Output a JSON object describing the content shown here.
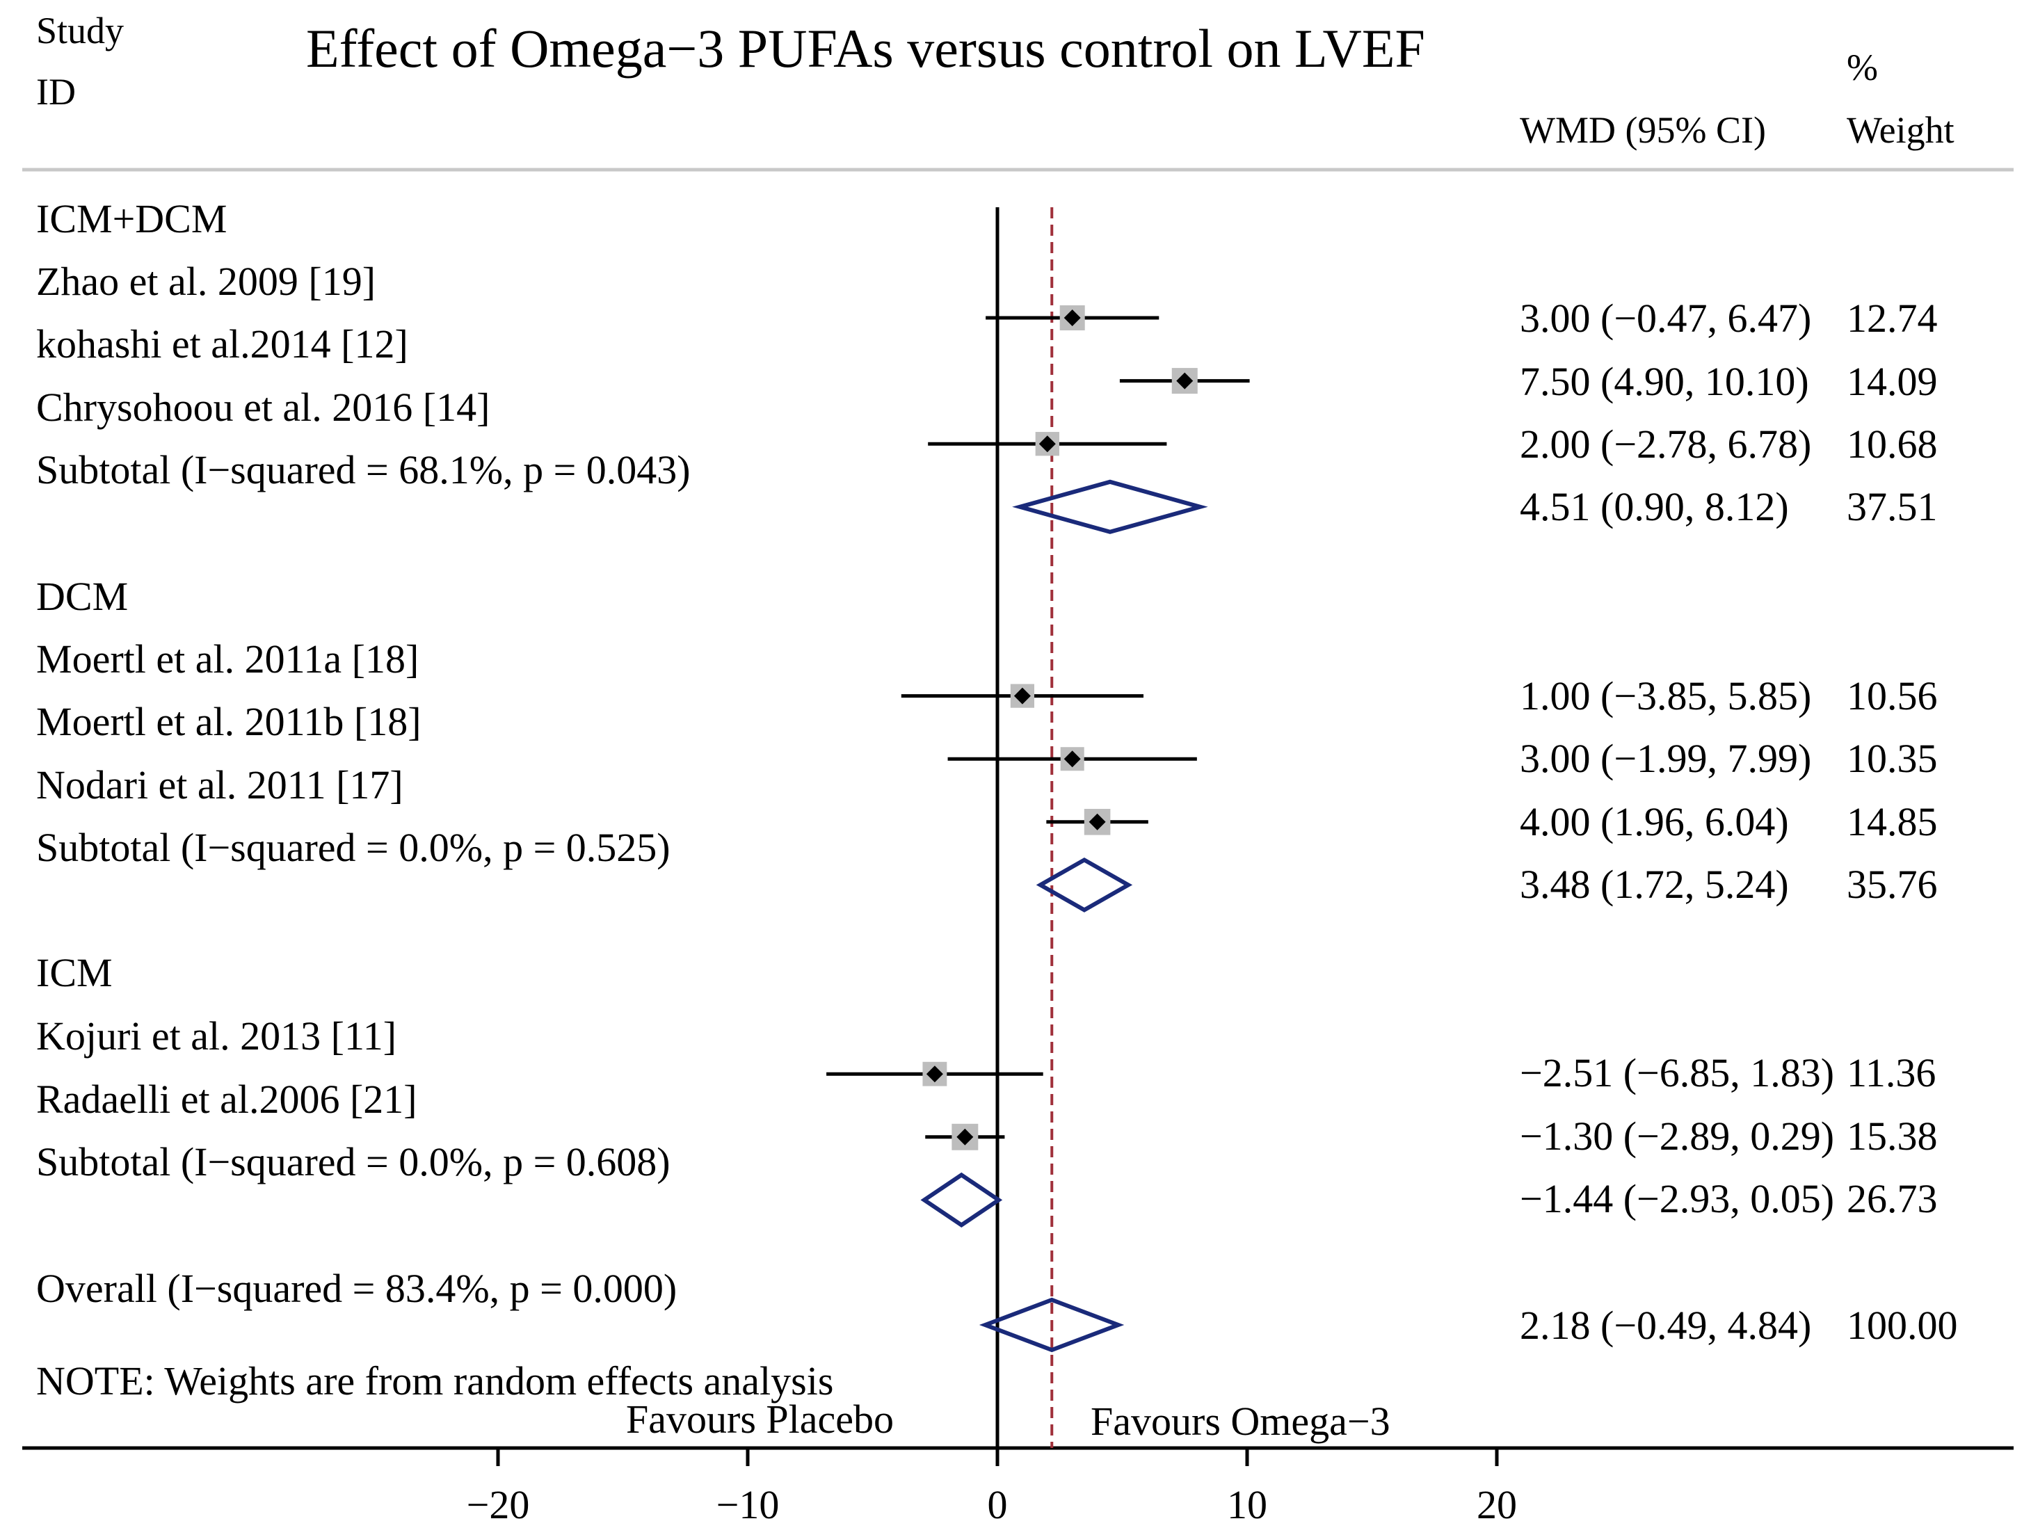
{
  "chart_data": {
    "type": "forest",
    "title": "Effect of Omega−3 PUFAs versus control on LVEF",
    "headers": {
      "study_line1": "Study",
      "study_line2": "ID",
      "effect": "WMD (95% CI)",
      "weight_line1": "%",
      "weight_line2": "Weight"
    },
    "xlim": [
      -40,
      40
    ],
    "ticks": [
      -20,
      -10,
      0,
      10,
      20
    ],
    "tick_labels": [
      "−20",
      "−10",
      "0",
      "10",
      "20"
    ],
    "null_line": 0,
    "overall_line": 2.18,
    "groups": [
      {
        "name": "ICM+DCM",
        "studies": [
          {
            "label": "Zhao et al. 2009 [19]",
            "est": 3.0,
            "lo": -0.47,
            "hi": 6.47,
            "ci_text": "3.00 (−0.47, 6.47)",
            "weight": "12.74"
          },
          {
            "label": "kohashi et al.2014 [12]",
            "est": 7.5,
            "lo": 4.9,
            "hi": 10.1,
            "ci_text": "7.50 (4.90, 10.10)",
            "weight": "14.09"
          },
          {
            "label": "Chrysohoou et al. 2016 [14]",
            "est": 2.0,
            "lo": -2.78,
            "hi": 6.78,
            "ci_text": "2.00 (−2.78, 6.78)",
            "weight": "10.68"
          }
        ],
        "subtotal": {
          "label": "Subtotal  (I−squared = 68.1%, p = 0.043)",
          "est": 4.51,
          "lo": 0.9,
          "hi": 8.12,
          "ci_text": "4.51 (0.90, 8.12)",
          "weight": "37.51"
        }
      },
      {
        "name": "DCM",
        "studies": [
          {
            "label": "Moertl et al. 2011a [18]",
            "est": 1.0,
            "lo": -3.85,
            "hi": 5.85,
            "ci_text": "1.00 (−3.85, 5.85)",
            "weight": "10.56"
          },
          {
            "label": "Moertl et al. 2011b [18]",
            "est": 3.0,
            "lo": -1.99,
            "hi": 7.99,
            "ci_text": "3.00 (−1.99, 7.99)",
            "weight": "10.35"
          },
          {
            "label": "Nodari et al. 2011 [17]",
            "est": 4.0,
            "lo": 1.96,
            "hi": 6.04,
            "ci_text": "4.00 (1.96, 6.04)",
            "weight": "14.85"
          }
        ],
        "subtotal": {
          "label": "Subtotal  (I−squared = 0.0%, p = 0.525)",
          "est": 3.48,
          "lo": 1.72,
          "hi": 5.24,
          "ci_text": "3.48 (1.72, 5.24)",
          "weight": "35.76"
        }
      },
      {
        "name": "ICM",
        "studies": [
          {
            "label": "Kojuri et al. 2013 [11]",
            "est": -2.51,
            "lo": -6.85,
            "hi": 1.83,
            "ci_text": "−2.51 (−6.85, 1.83)",
            "weight": "11.36"
          },
          {
            "label": "Radaelli et al.2006 [21]",
            "est": -1.3,
            "lo": -2.89,
            "hi": 0.29,
            "ci_text": "−1.30 (−2.89, 0.29)",
            "weight": "15.38"
          }
        ],
        "subtotal": {
          "label": "Subtotal  (I−squared = 0.0%, p = 0.608)",
          "est": -1.44,
          "lo": -2.93,
          "hi": 0.05,
          "ci_text": "−1.44 (−2.93, 0.05)",
          "weight": "26.73"
        }
      }
    ],
    "overall": {
      "label": "Overall  (I−squared = 83.4%, p = 0.000)",
      "est": 2.18,
      "lo": -0.49,
      "hi": 4.84,
      "ci_text": "2.18 (−0.49, 4.84)",
      "weight": "100.00"
    },
    "note": "NOTE: Weights are from random effects analysis",
    "favours_left": "Favours Placebo",
    "favours_right": "Favours Omega−3",
    "colors": {
      "ci_line": "#000000",
      "point": "#000000",
      "weight_box": "#bdbdbd",
      "diamond": "#1a2a7a",
      "overall_line": "#a0303a",
      "header_rule": "#c8c8c8"
    }
  }
}
